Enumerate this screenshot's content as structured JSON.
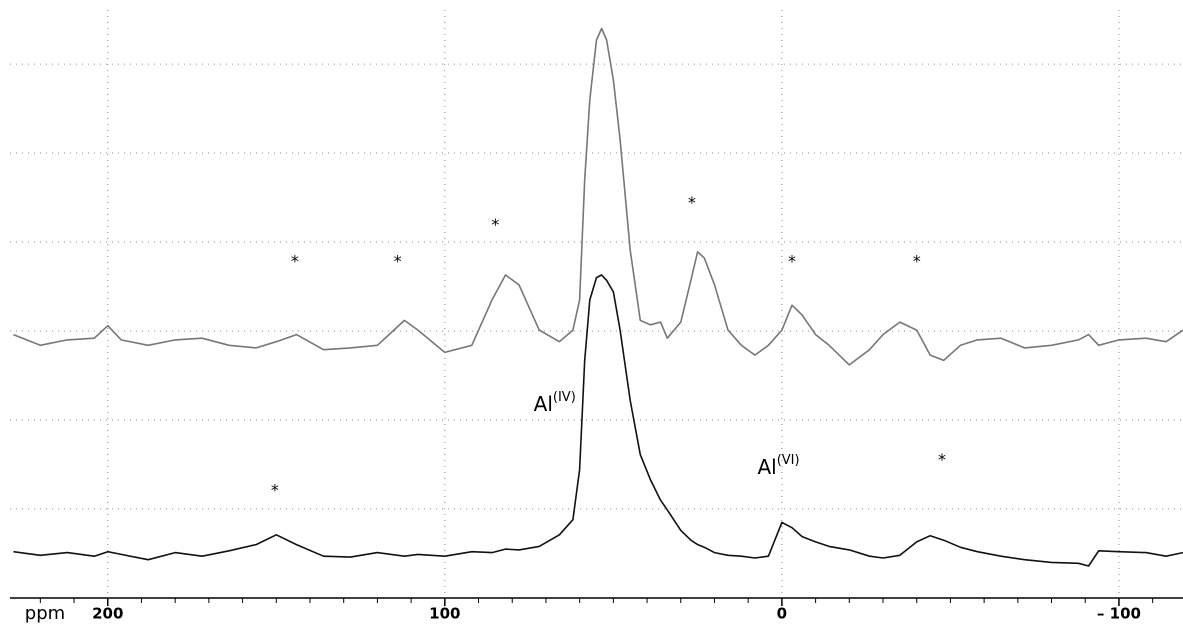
{
  "chart_data": {
    "type": "line",
    "xlabel": "ppm",
    "x": [
      228,
      220,
      212,
      204,
      200,
      196,
      188,
      180,
      172,
      164,
      156,
      150,
      144,
      136,
      128,
      120,
      112,
      108,
      100,
      92,
      86,
      82,
      78,
      72,
      66,
      62,
      60,
      58.5,
      57,
      55,
      53.5,
      52,
      50,
      48,
      45,
      42,
      39,
      36,
      34,
      30,
      27,
      25,
      23,
      20,
      16,
      12,
      8,
      4,
      0,
      -3,
      -6,
      -10,
      -14,
      -20,
      -26,
      -30,
      -35,
      -40,
      -44,
      -48,
      -53,
      -58,
      -65,
      -72,
      -80,
      -88,
      -91,
      -94,
      -100,
      -108,
      -114,
      -119
    ],
    "series": [
      {
        "color": "#777777",
        "values": [
          2.96,
          2.84,
          2.9,
          2.92,
          3.06,
          2.9,
          2.84,
          2.9,
          2.92,
          2.84,
          2.81,
          2.88,
          2.96,
          2.79,
          2.81,
          2.84,
          3.12,
          3.01,
          2.76,
          2.84,
          3.35,
          3.63,
          3.52,
          3.01,
          2.88,
          3.01,
          3.35,
          4.7,
          5.6,
          6.27,
          6.4,
          6.27,
          5.82,
          5.15,
          3.91,
          3.12,
          3.07,
          3.1,
          2.92,
          3.1,
          3.57,
          3.89,
          3.82,
          3.52,
          3.01,
          2.84,
          2.73,
          2.84,
          3.01,
          3.29,
          3.18,
          2.96,
          2.84,
          2.62,
          2.79,
          2.96,
          3.1,
          3.01,
          2.73,
          2.67,
          2.84,
          2.9,
          2.92,
          2.81,
          2.84,
          2.9,
          2.96,
          2.84,
          2.9,
          2.92,
          2.88,
          3.01
        ]
      },
      {
        "color": "#111111",
        "values": [
          0.52,
          0.48,
          0.51,
          0.47,
          0.52,
          0.49,
          0.43,
          0.51,
          0.47,
          0.53,
          0.6,
          0.71,
          0.6,
          0.47,
          0.46,
          0.51,
          0.47,
          0.49,
          0.47,
          0.52,
          0.51,
          0.55,
          0.54,
          0.58,
          0.71,
          0.88,
          1.44,
          2.67,
          3.35,
          3.6,
          3.63,
          3.57,
          3.44,
          3.01,
          2.22,
          1.61,
          1.33,
          1.1,
          0.99,
          0.76,
          0.65,
          0.6,
          0.57,
          0.51,
          0.48,
          0.47,
          0.45,
          0.47,
          0.85,
          0.79,
          0.69,
          0.63,
          0.58,
          0.54,
          0.47,
          0.45,
          0.48,
          0.63,
          0.7,
          0.65,
          0.57,
          0.52,
          0.47,
          0.43,
          0.4,
          0.39,
          0.36,
          0.53,
          0.52,
          0.51,
          0.47,
          0.51
        ]
      }
    ],
    "annotations": [
      {
        "text": "*",
        "x": 144.5,
        "y": 3.78
      },
      {
        "text": "*",
        "x": 114,
        "y": 3.78
      },
      {
        "text": "*",
        "x": 85,
        "y": 4.19
      },
      {
        "text": "*",
        "x": 26.7,
        "y": 4.44
      },
      {
        "text": "*",
        "x": -3,
        "y": 3.78
      },
      {
        "text": "*",
        "x": -40,
        "y": 3.78
      },
      {
        "text": "*",
        "x": 150.4,
        "y": 1.21
      },
      {
        "text": "*",
        "x": -47.5,
        "y": 1.55
      },
      {
        "text": "Al",
        "sup": "(IV)",
        "x": 67.4,
        "y": 2.17
      },
      {
        "text": "Al",
        "sup": "(VI)",
        "x": 1,
        "y": 1.46
      }
    ],
    "xlim": [
      229,
      -119
    ],
    "xticks": [
      200,
      100,
      0,
      {
        "value": -100,
        "label": "– 100"
      }
    ],
    "xminorticks": [
      220,
      210,
      190,
      180,
      170,
      160,
      150,
      140,
      130,
      120,
      110,
      90,
      80,
      70,
      60,
      50,
      40,
      30,
      20,
      10,
      -10,
      -20,
      -30,
      -40,
      -50,
      -60,
      -70,
      -80,
      -90,
      -110
    ],
    "ylim": [
      0,
      6.72
    ],
    "yticks": [
      1,
      2,
      3,
      4,
      5,
      6
    ],
    "grid": true
  }
}
